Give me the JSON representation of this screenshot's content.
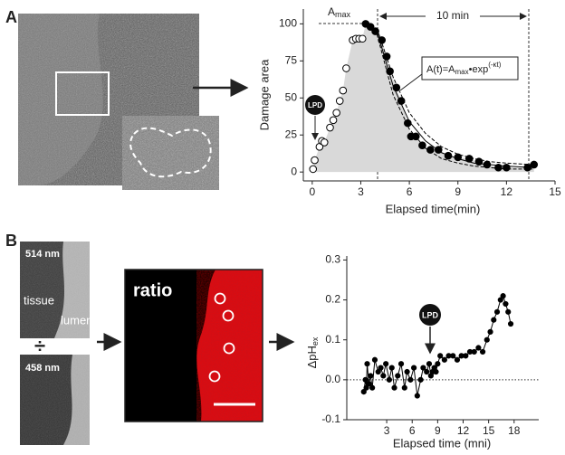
{
  "labels": {
    "panel_a": "A",
    "panel_b": "B"
  },
  "images": {
    "top_wavelength": "514 nm",
    "tissue": "tissue",
    "lumen": "lumen",
    "divide": "÷",
    "bottom_wavelength": "458 nm",
    "ratio": "ratio"
  },
  "chart_data": [
    {
      "type": "scatter",
      "ylabel": "Damage area",
      "xlabel": "Elapsed time(min)",
      "xlim": [
        -0.55,
        15
      ],
      "ylim": [
        -6,
        110
      ],
      "xticks": [
        0,
        3,
        6,
        9,
        12,
        15
      ],
      "yticks": [
        0,
        25,
        50,
        75,
        100
      ],
      "area": true,
      "area_color": "#d9d9d9",
      "annotations": {
        "amax": [
          "A",
          "max"
        ],
        "interval": "10 min",
        "equation": [
          "A(t)=A",
          "max",
          "•exp",
          "(-κt)"
        ],
        "stimulus": "LPD"
      },
      "series": [
        {
          "color": "#000000",
          "marker": "open",
          "line": "none",
          "x": [
            0.05,
            0.15,
            0.45,
            0.6,
            0.75,
            1.1,
            1.3,
            1.5,
            1.7,
            1.9,
            2.1,
            2.5,
            2.7,
            2.9,
            3.1
          ],
          "values": [
            2,
            8,
            17,
            21,
            20,
            30,
            35,
            40,
            48,
            55,
            70,
            89,
            90,
            90,
            90
          ]
        },
        {
          "color": "#000000",
          "marker": "filled",
          "line": "none",
          "x": [
            3.3,
            3.6,
            3.9,
            4.3,
            4.6,
            4.8,
            5.2,
            5.5,
            5.9,
            6.1,
            6.4,
            6.8,
            7.3,
            7.8,
            8.4,
            9.0,
            9.7,
            10.3,
            10.8,
            11.5,
            12.0,
            13.3,
            13.7
          ],
          "values": [
            100,
            98,
            95,
            89,
            78,
            68,
            57,
            48,
            33,
            24,
            24,
            18,
            15,
            15,
            11,
            10,
            9,
            7,
            5,
            3,
            3,
            3,
            5
          ]
        },
        {
          "color": "#000000",
          "marker": "none",
          "line": "dashed",
          "x": [
            4,
            5,
            6,
            7,
            8,
            9,
            10,
            11,
            12,
            13.6
          ],
          "values": [
            97,
            64,
            40,
            26,
            17,
            12,
            9,
            7,
            6,
            5
          ]
        },
        {
          "color": "#000000",
          "marker": "none",
          "line": "solid",
          "x": [
            4,
            5,
            6,
            7,
            8,
            9,
            10,
            11,
            12,
            13.6
          ],
          "values": [
            95,
            58,
            34,
            21,
            13,
            9,
            6,
            5,
            4,
            3
          ]
        },
        {
          "color": "#000000",
          "marker": "none",
          "line": "dashed",
          "x": [
            4,
            5,
            6,
            7,
            8,
            9,
            10,
            11,
            12,
            13.6
          ],
          "values": [
            93,
            52,
            29,
            16,
            9,
            6,
            4,
            3,
            2,
            2
          ]
        }
      ]
    },
    {
      "type": "line",
      "ylabel": [
        "ΔpH",
        "ex"
      ],
      "xlabel": "Elapsed time (mni)",
      "xlim": [
        -1.7,
        20.9
      ],
      "ylim": [
        -0.1,
        0.31
      ],
      "xticks": [
        3,
        6,
        9,
        12,
        15,
        18
      ],
      "yticks": [
        -0.1,
        {
          "value": 0,
          "label": "0.0"
        },
        0.1,
        0.2,
        0.3
      ],
      "zero_line": true,
      "annotations": {
        "stimulus": "LPD"
      },
      "series": [
        {
          "color": "#000000",
          "marker": "filled",
          "line": "solid",
          "x": [
            0.3,
            0.5,
            0.6,
            0.7,
            0.9,
            1.1,
            1.3,
            1.6,
            2.0,
            2.3,
            2.6,
            2.9,
            3.3,
            3.6,
            3.9,
            4.3,
            4.7,
            5.1,
            5.4,
            5.8,
            6.2,
            6.6,
            7.0,
            7.3,
            7.7,
            8.0,
            8.2,
            8.4,
            8.6,
            8.8,
            9.0,
            9.3,
            9.8,
            10.3,
            10.8,
            11.3,
            11.8,
            12.3,
            12.8,
            13.3,
            13.8,
            14.3,
            14.8,
            15.2,
            15.6,
            16.0,
            16.4,
            16.7,
            17.0,
            17.3,
            17.6
          ],
          "values": [
            -0.03,
            0.0,
            -0.02,
            0.04,
            -0.01,
            0.01,
            -0.02,
            0.05,
            0.02,
            0.03,
            0.01,
            0.04,
            0.0,
            0.03,
            -0.02,
            0.01,
            0.04,
            -0.02,
            0.02,
            0.0,
            0.03,
            -0.04,
            0.0,
            0.03,
            0.02,
            0.04,
            0.01,
            0.02,
            0.03,
            0.02,
            0.04,
            0.06,
            0.05,
            0.06,
            0.06,
            0.05,
            0.06,
            0.06,
            0.07,
            0.07,
            0.08,
            0.07,
            0.1,
            0.12,
            0.15,
            0.17,
            0.2,
            0.21,
            0.19,
            0.17,
            0.14
          ]
        }
      ]
    }
  ]
}
